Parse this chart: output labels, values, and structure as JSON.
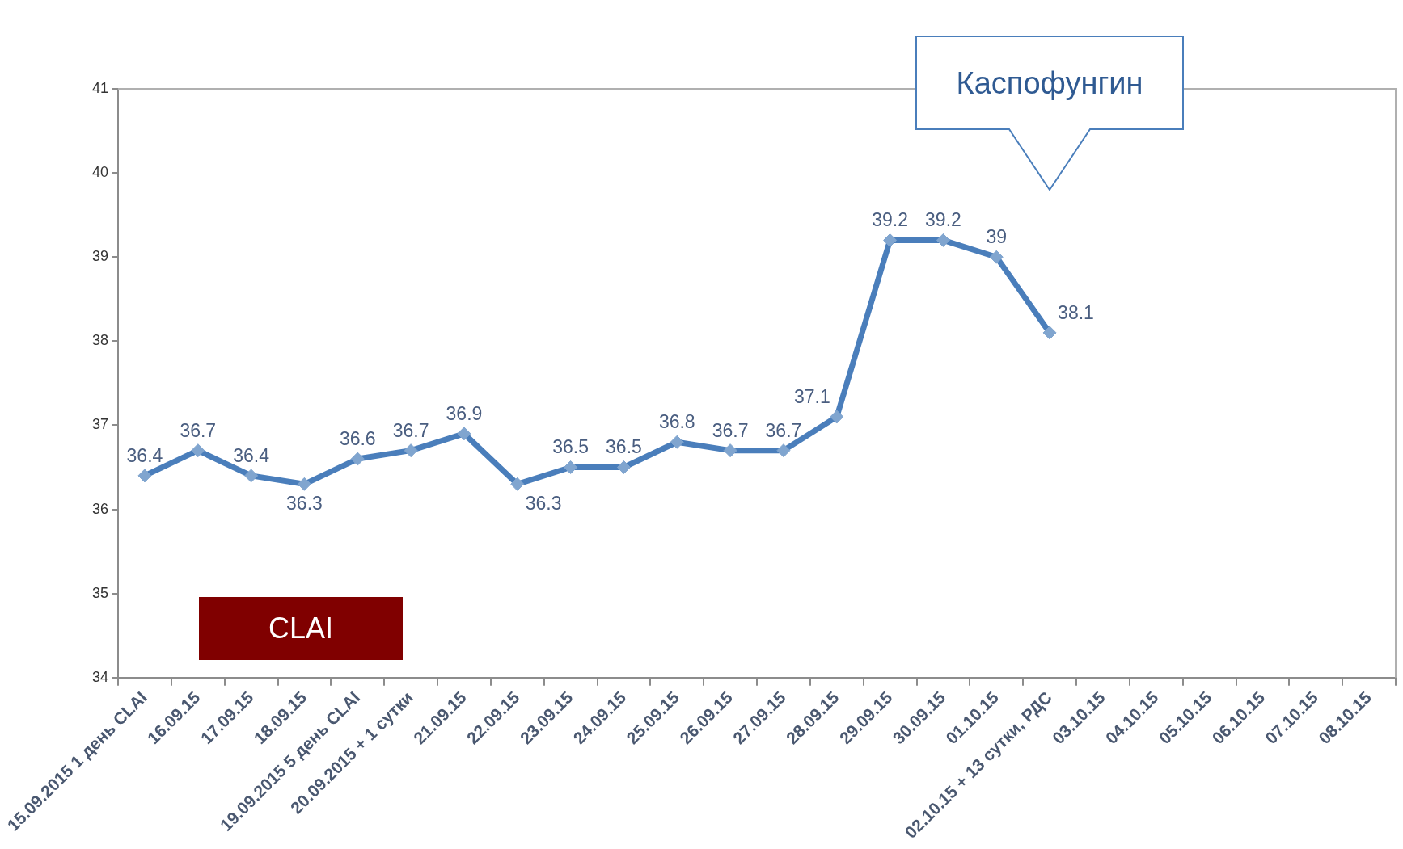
{
  "chart_data": {
    "type": "line",
    "categories": [
      "15.09.2015 1 день CLAI",
      "16.09.15",
      "17.09.15",
      "18.09.15",
      "19.09.2015 5 день CLAI",
      "20.09.2015 + 1 сутки",
      "21.09.15",
      "22.09.15",
      "23.09.15",
      "24.09.15",
      "25.09.15",
      "26.09.15",
      "27.09.15",
      "28.09.15",
      "29.09.15",
      "30.09.15",
      "01.10.15",
      "02.10.15 + 13 сутки, РДС",
      "03.10.15",
      "04.10.15",
      "05.10.15",
      "06.10.15",
      "07.10.15",
      "08.10.15"
    ],
    "values": [
      36.4,
      36.7,
      36.4,
      36.3,
      36.6,
      36.7,
      36.9,
      36.3,
      36.5,
      36.5,
      36.8,
      36.7,
      36.7,
      37.1,
      39.2,
      39.2,
      39,
      38.1,
      null,
      null,
      null,
      null,
      null,
      null
    ],
    "color": "#4a7ebb",
    "ylim": [
      34,
      41
    ],
    "yticks": [
      34,
      35,
      36,
      37,
      38,
      39,
      40,
      41
    ],
    "marker": "diamond",
    "line_style": "solid",
    "legend": false,
    "data_labels": true,
    "annotations": [
      "Каспофунгин",
      "CLAI"
    ]
  }
}
